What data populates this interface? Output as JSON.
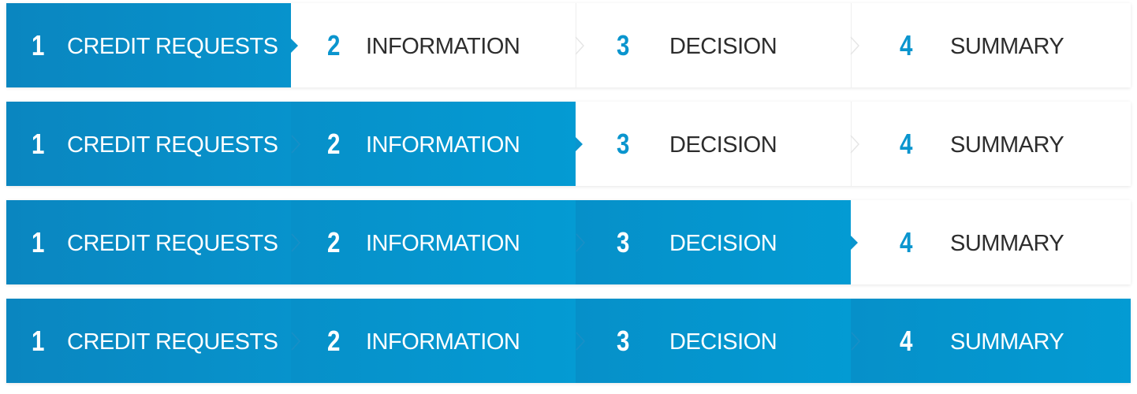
{
  "steps": [
    {
      "number": "1",
      "label": "CREDIT REQUESTS"
    },
    {
      "number": "2",
      "label": "INFORMATION"
    },
    {
      "number": "3",
      "label": "DECISION"
    },
    {
      "number": "4",
      "label": "SUMMARY"
    }
  ],
  "bars": [
    {
      "active_step": 1
    },
    {
      "active_step": 2
    },
    {
      "active_step": 3
    },
    {
      "active_step": 4
    }
  ],
  "colors": {
    "accent": "#0a95ce",
    "accent_dark": "#0a86c0",
    "pending_text": "#2d2d2d",
    "done_text": "#ffffff",
    "separator": "#eeeeee"
  },
  "icons": {
    "step_arrow": "triangle-right-icon",
    "step_divider": "chevron-right-icon"
  }
}
